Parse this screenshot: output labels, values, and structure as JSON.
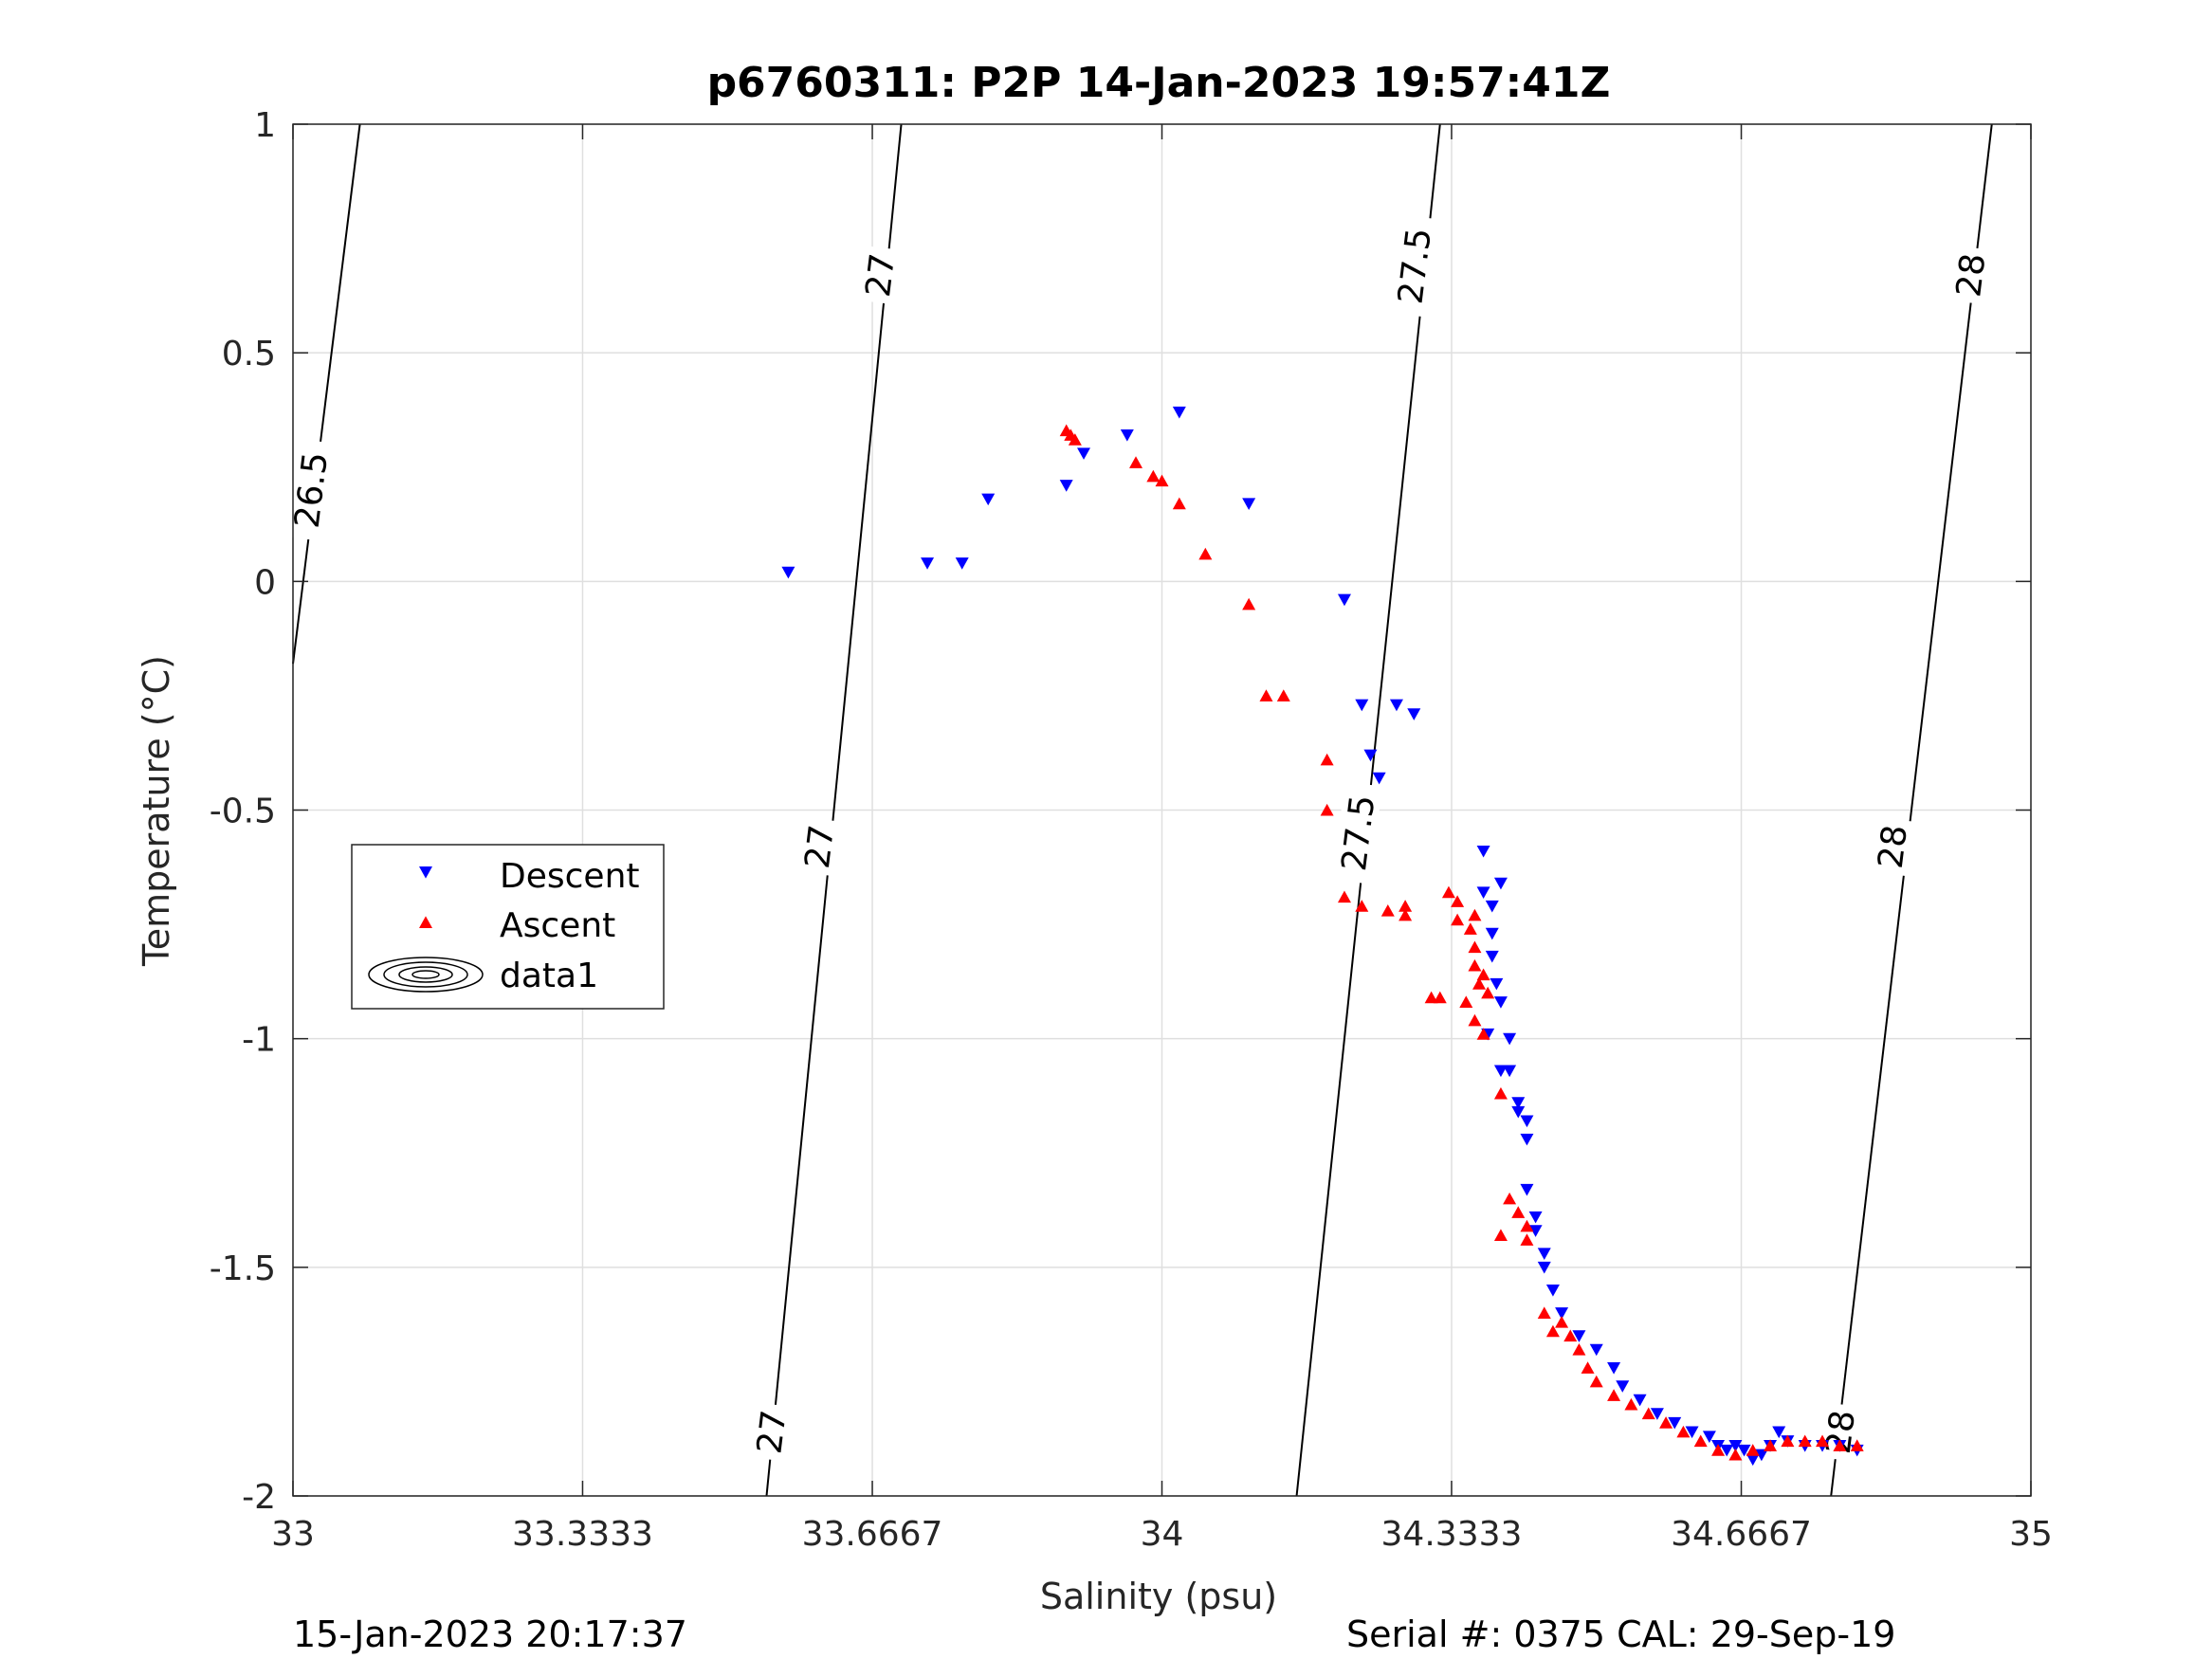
{
  "chart_data": {
    "type": "scatter",
    "title": "p6760311: P2P 14-Jan-2023 19:57:41Z",
    "xlabel": "Salinity (psu)",
    "ylabel": "Temperature (°C)",
    "xlim": [
      33,
      35
    ],
    "ylim": [
      -2,
      1
    ],
    "grid": true,
    "x_ticks": [
      "33",
      "33.3333",
      "33.6667",
      "34",
      "34.3333",
      "34.6667",
      "35"
    ],
    "y_ticks": [
      "1",
      "0.5",
      "0",
      "-0.5",
      "-1",
      "-1.5",
      "-2"
    ],
    "legend": {
      "placement": "middle-left",
      "entries": [
        "Descent",
        "Ascent",
        "data1"
      ]
    },
    "contours": [
      {
        "level": "26.5",
        "points": [
          [
            33.0,
            -0.18
          ],
          [
            33.077,
            1.0
          ]
        ]
      },
      {
        "level": "27",
        "points": [
          [
            33.545,
            -2.0
          ],
          [
            33.7,
            1.0
          ]
        ]
      },
      {
        "level": "27.5",
        "points": [
          [
            34.155,
            -2.0
          ],
          [
            34.32,
            1.0
          ]
        ]
      },
      {
        "level": "28",
        "points": [
          [
            34.77,
            -2.0
          ],
          [
            34.955,
            1.0
          ]
        ]
      }
    ],
    "contour_labels": [
      {
        "text": "26.5",
        "x": 33.02,
        "y": 0.2
      },
      {
        "text": "27",
        "x": 33.675,
        "y": 0.67
      },
      {
        "text": "27",
        "x": 33.605,
        "y": -0.58
      },
      {
        "text": "27",
        "x": 33.55,
        "y": -1.86
      },
      {
        "text": "27.5",
        "x": 34.29,
        "y": 0.69
      },
      {
        "text": "27.5",
        "x": 34.225,
        "y": -0.55
      },
      {
        "text": "28",
        "x": 34.93,
        "y": 0.67
      },
      {
        "text": "28",
        "x": 34.84,
        "y": -0.58
      },
      {
        "text": "28",
        "x": 34.78,
        "y": -1.86
      }
    ],
    "series": [
      {
        "name": "Descent",
        "marker": "triangle-down",
        "color": "#0000ff",
        "points": [
          [
            33.57,
            0.02
          ],
          [
            33.73,
            0.04
          ],
          [
            33.77,
            0.04
          ],
          [
            33.8,
            0.18
          ],
          [
            33.89,
            0.21
          ],
          [
            33.91,
            0.28
          ],
          [
            33.96,
            0.32
          ],
          [
            34.02,
            0.37
          ],
          [
            34.1,
            0.17
          ],
          [
            34.21,
            -0.04
          ],
          [
            34.23,
            -0.27
          ],
          [
            34.24,
            -0.38
          ],
          [
            34.25,
            -0.43
          ],
          [
            34.27,
            -0.27
          ],
          [
            34.29,
            -0.29
          ],
          [
            34.37,
            -0.59
          ],
          [
            34.38,
            -0.71
          ],
          [
            34.37,
            -0.68
          ],
          [
            34.39,
            -0.66
          ],
          [
            34.38,
            -0.77
          ],
          [
            34.38,
            -0.82
          ],
          [
            34.385,
            -0.88
          ],
          [
            34.39,
            -0.92
          ],
          [
            34.375,
            -0.99
          ],
          [
            34.4,
            -1.0
          ],
          [
            34.39,
            -1.07
          ],
          [
            34.4,
            -1.07
          ],
          [
            34.41,
            -1.14
          ],
          [
            34.41,
            -1.16
          ],
          [
            34.42,
            -1.18
          ],
          [
            34.42,
            -1.22
          ],
          [
            34.42,
            -1.33
          ],
          [
            34.43,
            -1.39
          ],
          [
            34.43,
            -1.42
          ],
          [
            34.44,
            -1.47
          ],
          [
            34.44,
            -1.5
          ],
          [
            34.45,
            -1.55
          ],
          [
            34.46,
            -1.6
          ],
          [
            34.48,
            -1.65
          ],
          [
            34.5,
            -1.68
          ],
          [
            34.52,
            -1.72
          ],
          [
            34.53,
            -1.76
          ],
          [
            34.55,
            -1.79
          ],
          [
            34.57,
            -1.82
          ],
          [
            34.59,
            -1.84
          ],
          [
            34.61,
            -1.86
          ],
          [
            34.63,
            -1.87
          ],
          [
            34.64,
            -1.89
          ],
          [
            34.65,
            -1.9
          ],
          [
            34.66,
            -1.89
          ],
          [
            34.67,
            -1.9
          ],
          [
            34.68,
            -1.92
          ],
          [
            34.69,
            -1.91
          ],
          [
            34.7,
            -1.89
          ],
          [
            34.71,
            -1.86
          ],
          [
            34.72,
            -1.88
          ],
          [
            34.74,
            -1.89
          ],
          [
            34.76,
            -1.89
          ],
          [
            34.78,
            -1.89
          ],
          [
            34.8,
            -1.9
          ]
        ]
      },
      {
        "name": "Ascent",
        "marker": "triangle-up",
        "color": "#ff0000",
        "points": [
          [
            33.89,
            0.33
          ],
          [
            33.895,
            0.32
          ],
          [
            33.9,
            0.31
          ],
          [
            33.97,
            0.26
          ],
          [
            33.99,
            0.23
          ],
          [
            34.0,
            0.22
          ],
          [
            34.02,
            0.17
          ],
          [
            34.05,
            0.06
          ],
          [
            34.1,
            -0.05
          ],
          [
            34.12,
            -0.25
          ],
          [
            34.14,
            -0.25
          ],
          [
            34.19,
            -0.39
          ],
          [
            34.19,
            -0.5
          ],
          [
            34.21,
            -0.69
          ],
          [
            34.23,
            -0.71
          ],
          [
            34.26,
            -0.72
          ],
          [
            34.28,
            -0.71
          ],
          [
            34.28,
            -0.73
          ],
          [
            34.31,
            -0.91
          ],
          [
            34.32,
            -0.91
          ],
          [
            34.33,
            -0.68
          ],
          [
            34.34,
            -0.7
          ],
          [
            34.34,
            -0.74
          ],
          [
            34.36,
            -0.73
          ],
          [
            34.355,
            -0.76
          ],
          [
            34.36,
            -0.8
          ],
          [
            34.36,
            -0.84
          ],
          [
            34.37,
            -0.86
          ],
          [
            34.365,
            -0.88
          ],
          [
            34.375,
            -0.9
          ],
          [
            34.35,
            -0.92
          ],
          [
            34.36,
            -0.96
          ],
          [
            34.37,
            -0.99
          ],
          [
            34.39,
            -1.12
          ],
          [
            34.4,
            -1.35
          ],
          [
            34.39,
            -1.43
          ],
          [
            34.41,
            -1.38
          ],
          [
            34.42,
            -1.41
          ],
          [
            34.42,
            -1.44
          ],
          [
            34.44,
            -1.6
          ],
          [
            34.45,
            -1.64
          ],
          [
            34.46,
            -1.62
          ],
          [
            34.47,
            -1.65
          ],
          [
            34.48,
            -1.68
          ],
          [
            34.49,
            -1.72
          ],
          [
            34.5,
            -1.75
          ],
          [
            34.52,
            -1.78
          ],
          [
            34.54,
            -1.8
          ],
          [
            34.56,
            -1.82
          ],
          [
            34.58,
            -1.84
          ],
          [
            34.6,
            -1.86
          ],
          [
            34.62,
            -1.88
          ],
          [
            34.64,
            -1.9
          ],
          [
            34.66,
            -1.91
          ],
          [
            34.68,
            -1.9
          ],
          [
            34.7,
            -1.89
          ],
          [
            34.72,
            -1.88
          ],
          [
            34.74,
            -1.88
          ],
          [
            34.76,
            -1.88
          ],
          [
            34.78,
            -1.89
          ],
          [
            34.8,
            -1.89
          ]
        ]
      }
    ],
    "footer_left": "15-Jan-2023 20:17:37",
    "footer_right": "Serial #: 0375  CAL: 29-Sep-19"
  }
}
